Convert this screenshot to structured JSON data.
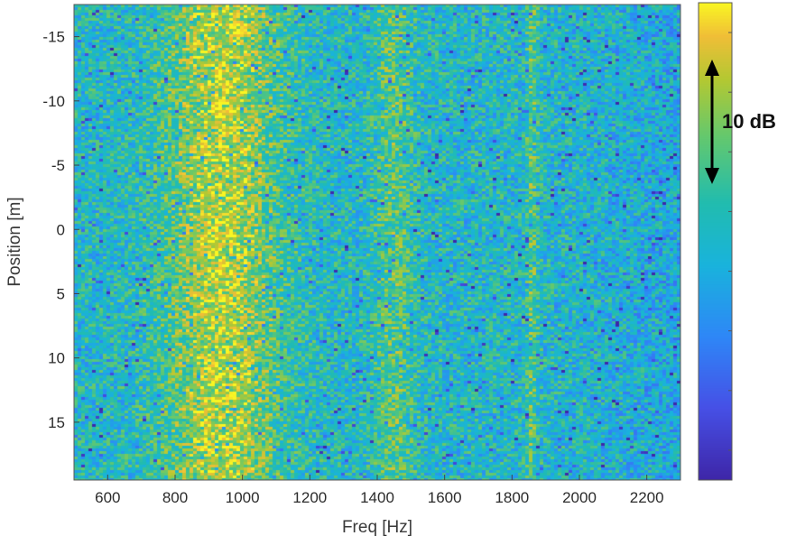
{
  "chart_data": {
    "type": "heatmap",
    "title": "",
    "xlabel": "Freq [Hz]",
    "ylabel": "Position [m]",
    "xlim": [
      500,
      2300
    ],
    "ylim": [
      -17.5,
      19.5
    ],
    "y_reversed": true,
    "x_ticks": [
      600,
      800,
      1000,
      1200,
      1400,
      1600,
      1800,
      2000,
      2200
    ],
    "x_tick_labels": [
      "600",
      "800",
      "1000",
      "1200",
      "1400",
      "1600",
      "1800",
      "2000",
      "2200"
    ],
    "y_ticks": [
      -15,
      -10,
      -5,
      0,
      5,
      10,
      15
    ],
    "y_tick_labels": [
      "-15",
      "-10",
      "-5",
      "0",
      "5",
      "10",
      "15"
    ],
    "colormap": "parula",
    "colorbar": {
      "orientation": "vertical",
      "position": "right"
    },
    "annotation": {
      "text": "10 dB",
      "type": "double-arrow",
      "location": "colorbar"
    },
    "bands": [
      {
        "freq_range": [
          750,
          1130
        ],
        "position_range": [
          -17.5,
          19.5
        ],
        "level": "high"
      },
      {
        "freq_range": [
          1380,
          1520
        ],
        "position_range": [
          -17.5,
          19.5
        ],
        "level": "medium"
      },
      {
        "freq_range": [
          1840,
          1880
        ],
        "position_range": [
          -17.5,
          19.5
        ],
        "level": "medium"
      }
    ],
    "colors": {
      "low": "#3e26a8",
      "mid_low": "#2e87f7",
      "mid": "#21bcaf",
      "mid_high": "#93ca3a",
      "high": "#f9d225"
    }
  }
}
